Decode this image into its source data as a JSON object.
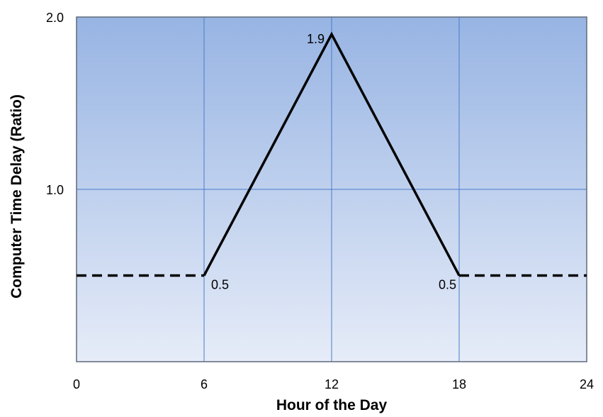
{
  "chart_data": {
    "type": "line",
    "xlabel": "Hour of the Day",
    "ylabel": "Computer Time Delay (Ratio)",
    "xlim": [
      0,
      24
    ],
    "ylim": [
      0,
      2.0
    ],
    "x_ticks": [
      "0",
      "6",
      "12",
      "18",
      "24"
    ],
    "x_tick_values": [
      0,
      6,
      12,
      18,
      24
    ],
    "y_ticks": [
      "1.0",
      "2.0"
    ],
    "y_tick_values": [
      1.0,
      2.0
    ],
    "grid": true,
    "background": "blue vertical gradient",
    "series": [
      {
        "style": "dashed",
        "x": [
          0,
          6
        ],
        "y": [
          0.5,
          0.5
        ]
      },
      {
        "style": "solid",
        "x": [
          6,
          12,
          18
        ],
        "y": [
          0.5,
          1.9,
          0.5
        ]
      },
      {
        "style": "dashed",
        "x": [
          18,
          24
        ],
        "y": [
          0.5,
          0.5
        ]
      }
    ],
    "annotations": [
      {
        "text": "0.5",
        "x": 6,
        "y": 0.5,
        "position": "below-right"
      },
      {
        "text": "1.9",
        "x": 12,
        "y": 1.9,
        "position": "left"
      },
      {
        "text": "0.5",
        "x": 18,
        "y": 0.5,
        "position": "below-left"
      }
    ]
  },
  "colors": {
    "plot_gradient_top": "#97b4e3",
    "plot_gradient_bottom": "#e6ecf8",
    "gridline": "#4a7cc9",
    "plot_border": "#5f6a7a",
    "line": "#000000"
  }
}
